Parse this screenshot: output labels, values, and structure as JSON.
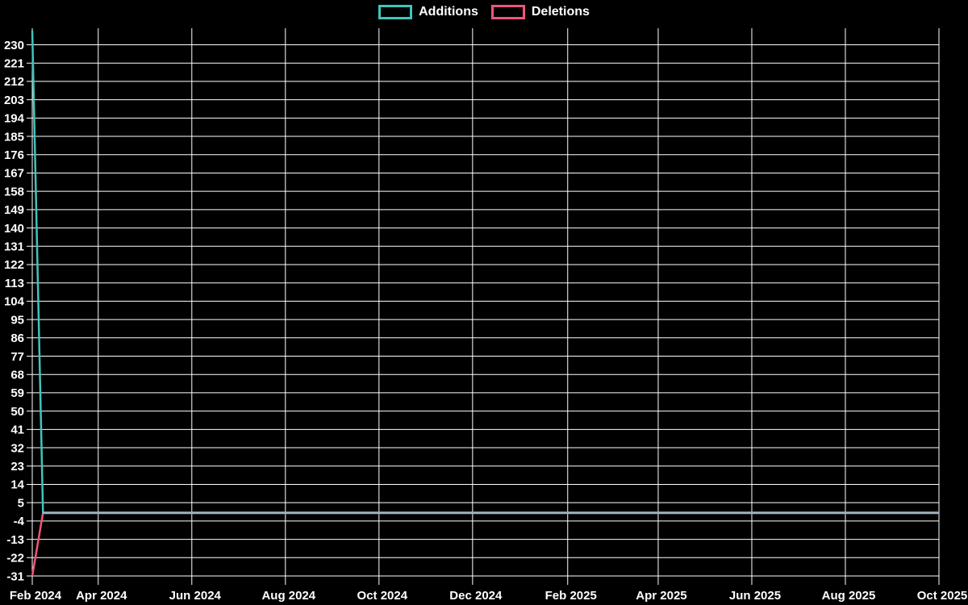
{
  "page": {
    "background_color": "#000000",
    "text_color": "#ffffff"
  },
  "legend": {
    "position": "top-center",
    "items": [
      {
        "label": "Additions",
        "color": "#40c4bc"
      },
      {
        "label": "Deletions",
        "color": "#f0557a"
      }
    ]
  },
  "chart_data": {
    "type": "line",
    "title": "",
    "xlabel": "",
    "ylabel": "",
    "grid": true,
    "grid_color": "#ffffff",
    "background_color": "#000000",
    "legend_position": "top-center",
    "x_domain": [
      "2024-02-18",
      "2025-10-01"
    ],
    "ylim": [
      -33,
      238
    ],
    "y_ticks": [
      230,
      221,
      212,
      203,
      194,
      185,
      176,
      167,
      158,
      149,
      140,
      131,
      122,
      113,
      104,
      95,
      86,
      77,
      68,
      59,
      50,
      41,
      32,
      23,
      14,
      5,
      -4,
      -13,
      -22,
      -31
    ],
    "x_ticks": [
      {
        "label": "Feb 2024",
        "date": "2024-02-18"
      },
      {
        "label": "Apr 2024",
        "date": "2024-04-01"
      },
      {
        "label": "Jun 2024",
        "date": "2024-06-01"
      },
      {
        "label": "Aug 2024",
        "date": "2024-08-01"
      },
      {
        "label": "Oct 2024",
        "date": "2024-10-01"
      },
      {
        "label": "Dec 2024",
        "date": "2024-12-01"
      },
      {
        "label": "Feb 2025",
        "date": "2025-02-01"
      },
      {
        "label": "Apr 2025",
        "date": "2025-04-01"
      },
      {
        "label": "Jun 2025",
        "date": "2025-06-01"
      },
      {
        "label": "Aug 2025",
        "date": "2025-08-01"
      },
      {
        "label": "Oct 2025",
        "date": "2025-10-01"
      }
    ],
    "series": [
      {
        "name": "Additions",
        "color": "#40c4bc",
        "points": [
          {
            "date": "2024-02-18",
            "value": 237
          },
          {
            "date": "2024-02-25",
            "value": 0
          },
          {
            "date": "2025-10-01",
            "value": 0
          }
        ]
      },
      {
        "name": "Deletions",
        "color": "#f0557a",
        "points": [
          {
            "date": "2024-02-18",
            "value": -31
          },
          {
            "date": "2024-02-25",
            "value": 0
          },
          {
            "date": "2025-10-01",
            "value": 0
          }
        ]
      }
    ],
    "overlap_line_color": "#a0b4c0"
  }
}
